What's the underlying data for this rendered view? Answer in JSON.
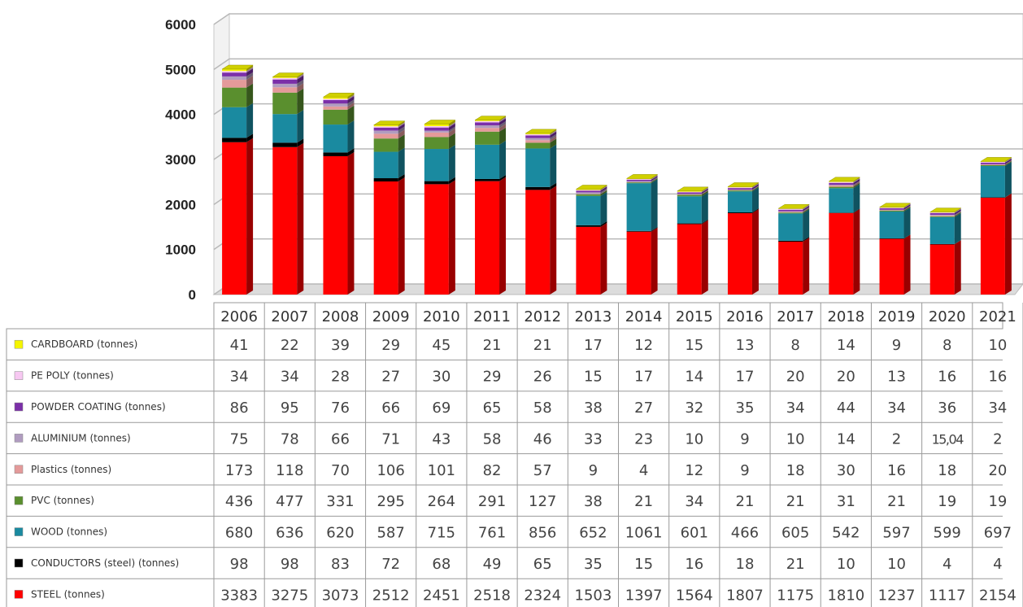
{
  "chart_data": {
    "type": "bar",
    "stacked": true,
    "three_d": true,
    "categories": [
      "2006",
      "2007",
      "2008",
      "2009",
      "2010",
      "2011",
      "2012",
      "2013",
      "2014",
      "2015",
      "2016",
      "2017",
      "2018",
      "2019",
      "2020",
      "2021"
    ],
    "y_ticks": [
      "0",
      "1000",
      "2000",
      "3000",
      "4000",
      "5000",
      "6000"
    ],
    "ylim": [
      0,
      6000
    ],
    "grid": true,
    "legend": "data-table-left",
    "series": [
      {
        "name": "STEEL (tonnes)",
        "color": "#ff0000",
        "values": [
          3383,
          3275,
          3073,
          2512,
          2451,
          2518,
          2324,
          1503,
          1397,
          1564,
          1807,
          1175,
          1810,
          1237,
          1117,
          2154
        ],
        "labels": [
          "3383",
          "3275",
          "3073",
          "2512",
          "2451",
          "2518",
          "2324",
          "1503",
          "1397",
          "1564",
          "1807",
          "1175",
          "1810",
          "1237",
          "1117",
          "2154"
        ]
      },
      {
        "name": "CONDUCTORS (steel) (tonnes)",
        "color": "#000000",
        "values": [
          98,
          98,
          83,
          72,
          68,
          49,
          65,
          35,
          15,
          16,
          18,
          21,
          10,
          10,
          4,
          4
        ],
        "labels": [
          "98",
          "98",
          "83",
          "72",
          "68",
          "49",
          "65",
          "35",
          "15",
          "16",
          "18",
          "21",
          "10",
          "10",
          "4",
          "4"
        ]
      },
      {
        "name": "WOOD (tonnes)",
        "color": "#1a8aa0",
        "values": [
          680,
          636,
          620,
          587,
          715,
          761,
          856,
          652,
          1061,
          601,
          466,
          605,
          542,
          597,
          599,
          697
        ],
        "labels": [
          "680",
          "636",
          "620",
          "587",
          "715",
          "761",
          "856",
          "652",
          "1061",
          "601",
          "466",
          "605",
          "542",
          "597",
          "599",
          "697"
        ]
      },
      {
        "name": "PVC (tonnes)",
        "color": "#5a8f2e",
        "values": [
          436,
          477,
          331,
          295,
          264,
          291,
          127,
          38,
          21,
          34,
          21,
          21,
          31,
          21,
          19,
          19
        ],
        "labels": [
          "436",
          "477",
          "331",
          "295",
          "264",
          "291",
          "127",
          "38",
          "21",
          "34",
          "21",
          "21",
          "31",
          "21",
          "19",
          "19"
        ]
      },
      {
        "name": "Plastics (tonnes)",
        "color": "#e49a9a",
        "values": [
          173,
          118,
          70,
          106,
          101,
          82,
          57,
          9,
          4,
          12,
          9,
          18,
          30,
          16,
          18,
          20
        ],
        "labels": [
          "173",
          "118",
          "70",
          "106",
          "101",
          "82",
          "57",
          "9",
          "4",
          "12",
          "9",
          "18",
          "30",
          "16",
          "18",
          "20"
        ]
      },
      {
        "name": "ALUMINIUM (tonnes)",
        "color": "#b09cc0",
        "values": [
          75,
          78,
          66,
          71,
          43,
          58,
          46,
          33,
          23,
          10,
          9,
          10,
          14,
          2,
          15.04,
          2
        ],
        "labels": [
          "75",
          "78",
          "66",
          "71",
          "43",
          "58",
          "46",
          "33",
          "23",
          "10",
          "9",
          "10",
          "14",
          "2",
          "15,04",
          "2"
        ]
      },
      {
        "name": "POWDER COATING (tonnes)",
        "color": "#7b2fa8",
        "values": [
          86,
          95,
          76,
          66,
          69,
          65,
          58,
          38,
          27,
          32,
          35,
          34,
          44,
          34,
          36,
          34
        ],
        "labels": [
          "86",
          "95",
          "76",
          "66",
          "69",
          "65",
          "58",
          "38",
          "27",
          "32",
          "35",
          "34",
          "44",
          "34",
          "36",
          "34"
        ]
      },
      {
        "name": "PE POLY (tonnes)",
        "color": "#f7c8f2",
        "values": [
          34,
          34,
          28,
          27,
          30,
          29,
          26,
          15,
          17,
          14,
          17,
          20,
          20,
          13,
          16,
          16
        ],
        "labels": [
          "34",
          "34",
          "28",
          "27",
          "30",
          "29",
          "26",
          "15",
          "17",
          "14",
          "17",
          "20",
          "20",
          "13",
          "16",
          "16"
        ]
      },
      {
        "name": "CARDBOARD (tonnes)",
        "color": "#f5f500",
        "values": [
          41,
          22,
          39,
          29,
          45,
          21,
          21,
          17,
          12,
          15,
          13,
          8,
          14,
          9,
          8,
          10
        ],
        "labels": [
          "41",
          "22",
          "39",
          "29",
          "45",
          "21",
          "21",
          "17",
          "12",
          "15",
          "13",
          "8",
          "14",
          "9",
          "8",
          "10"
        ]
      }
    ],
    "table_row_order": [
      "CARDBOARD (tonnes)",
      "PE POLY (tonnes)",
      "POWDER COATING (tonnes)",
      "ALUMINIUM (tonnes)",
      "Plastics (tonnes)",
      "PVC (tonnes)",
      "WOOD (tonnes)",
      "CONDUCTORS (steel) (tonnes)",
      "STEEL (tonnes)"
    ]
  }
}
